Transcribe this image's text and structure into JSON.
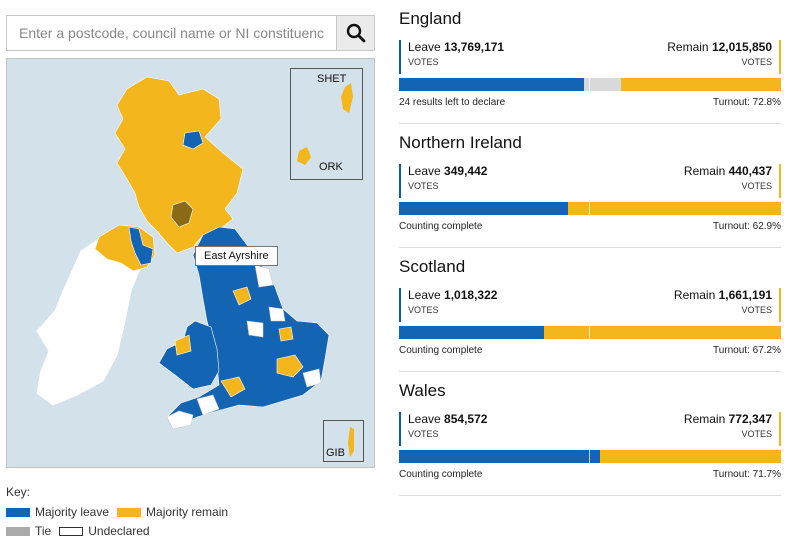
{
  "search": {
    "placeholder": "Enter a postcode, council name or NI constituency"
  },
  "map": {
    "tooltip": "East Ayrshire",
    "insets": {
      "shetland_orkney": [
        "SHET",
        "ORK"
      ],
      "gibraltar": "GIB"
    }
  },
  "key": {
    "title": "Key:",
    "items": [
      {
        "label": "Majority leave",
        "color": "#1464b4"
      },
      {
        "label": "Majority remain",
        "color": "#f3b61c"
      },
      {
        "label": "Tie",
        "color": "#aaaaaa"
      },
      {
        "label": "Undeclared",
        "color": "#ffffff"
      }
    ]
  },
  "colors": {
    "leave": "#1464b4",
    "remain": "#f3b61c",
    "undeclared": "#dadada"
  },
  "regions": [
    {
      "name": "England",
      "leave_label": "Leave",
      "leave": "13,769,171",
      "remain_label": "Remain",
      "remain": "12,015,850",
      "votes_label": "VOTES",
      "leave_share": 0.485,
      "undeclared_share": 0.095,
      "status": "24 results left to declare",
      "turnout": "Turnout: 72.8%"
    },
    {
      "name": "Northern Ireland",
      "leave_label": "Leave",
      "leave": "349,442",
      "remain_label": "Remain",
      "remain": "440,437",
      "votes_label": "VOTES",
      "leave_share": 0.442,
      "undeclared_share": 0,
      "status": "Counting complete",
      "turnout": "Turnout: 62.9%"
    },
    {
      "name": "Scotland",
      "leave_label": "Leave",
      "leave": "1,018,322",
      "remain_label": "Remain",
      "remain": "1,661,191",
      "votes_label": "VOTES",
      "leave_share": 0.38,
      "undeclared_share": 0,
      "status": "Counting complete",
      "turnout": "Turnout: 67.2%"
    },
    {
      "name": "Wales",
      "leave_label": "Leave",
      "leave": "854,572",
      "remain_label": "Remain",
      "remain": "772,347",
      "votes_label": "VOTES",
      "leave_share": 0.525,
      "undeclared_share": 0,
      "status": "Counting complete",
      "turnout": "Turnout: 71.7%"
    }
  ]
}
